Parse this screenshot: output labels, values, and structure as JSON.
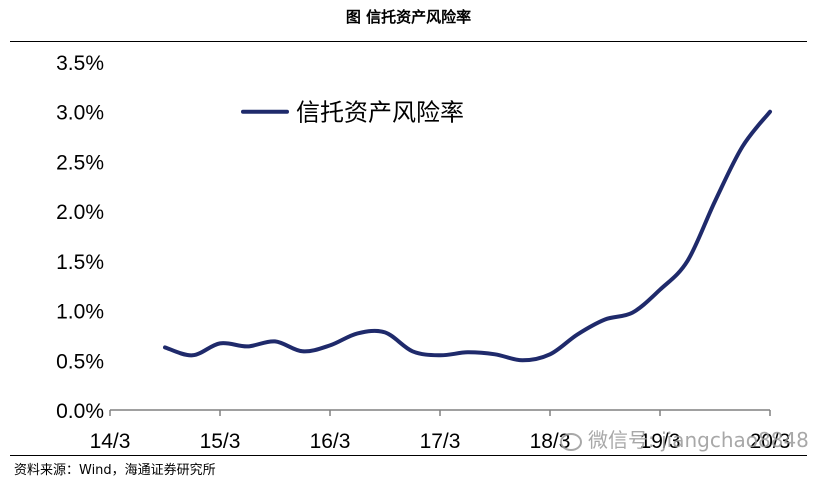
{
  "figure": {
    "title": "图  信托资产风险率",
    "source": "资料来源：Wind，海通证券研究所",
    "watermark": "微信号: jiangchao8848"
  },
  "colors": {
    "series": "#1f2a6b",
    "axis": "#808080"
  },
  "chart_data": {
    "type": "line",
    "title": "",
    "xlabel": "",
    "ylabel": "",
    "x_ticks": [
      "14/3",
      "15/3",
      "16/3",
      "17/3",
      "18/3",
      "19/3",
      "20/3"
    ],
    "y_ticks": [
      "0.0%",
      "0.5%",
      "1.0%",
      "1.5%",
      "2.0%",
      "2.5%",
      "3.0%",
      "3.5%"
    ],
    "ylim": [
      0,
      3.5
    ],
    "legend_position": "top-left",
    "series": [
      {
        "name": "信托资产风险率",
        "x": [
          "14/9",
          "14/12",
          "15/3",
          "15/6",
          "15/9",
          "15/12",
          "16/3",
          "16/6",
          "16/9",
          "16/12",
          "17/3",
          "17/6",
          "17/9",
          "17/12",
          "18/3",
          "18/6",
          "18/9",
          "18/12",
          "19/3",
          "19/6",
          "19/9",
          "19/12",
          "20/3"
        ],
        "values": [
          0.63,
          0.55,
          0.67,
          0.64,
          0.69,
          0.59,
          0.65,
          0.77,
          0.78,
          0.59,
          0.55,
          0.58,
          0.56,
          0.5,
          0.56,
          0.76,
          0.91,
          0.98,
          1.21,
          1.5,
          2.1,
          2.65,
          3.0
        ]
      }
    ]
  }
}
